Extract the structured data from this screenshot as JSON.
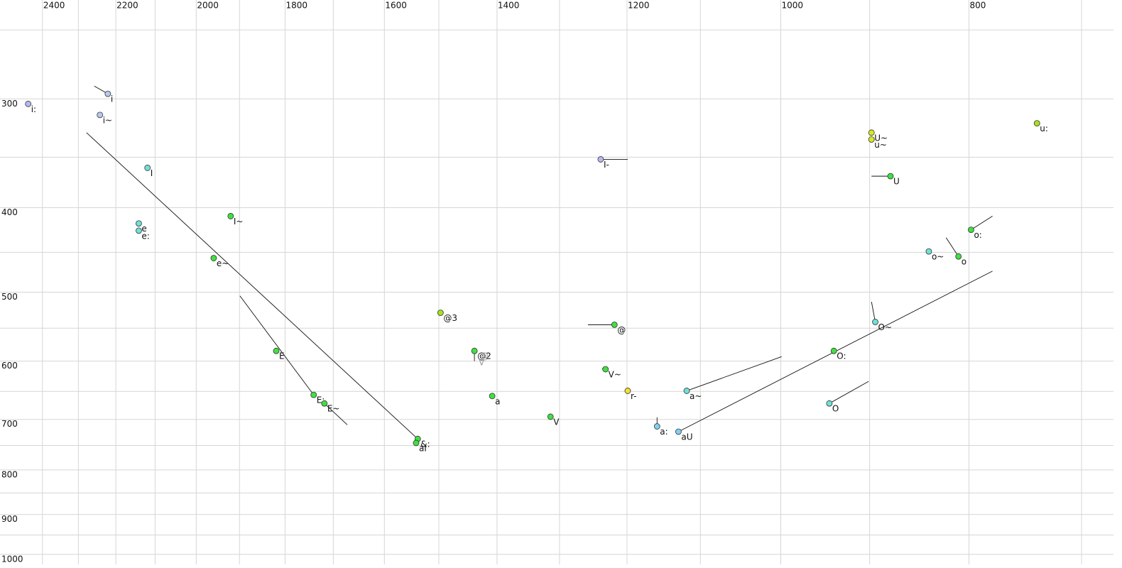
{
  "chart_data": {
    "type": "scatter",
    "log_x": true,
    "log_y": true,
    "grid": true,
    "xlim": [
      2524,
      674
    ],
    "ylim": [
      231,
      1027
    ],
    "xticks": [
      2400,
      2200,
      2000,
      1800,
      1600,
      1400,
      1200,
      1000,
      800
    ],
    "xgrid": [
      2400,
      2300,
      2200,
      2100,
      2000,
      1900,
      1800,
      1700,
      1600,
      1500,
      1400,
      1300,
      1200,
      1100,
      1000,
      900,
      800,
      700
    ],
    "yticks": [
      300,
      400,
      500,
      600,
      700,
      800,
      900,
      1000
    ],
    "ygrid": [
      250,
      300,
      350,
      400,
      450,
      500,
      550,
      600,
      650,
      700,
      750,
      800,
      850,
      900,
      950,
      1000
    ],
    "points": [
      {
        "name": "i:",
        "x": 2441,
        "y": 304,
        "color": "#b8b8f0"
      },
      {
        "name": "i",
        "x": 2221,
        "y": 296,
        "color": "#b8c8f0",
        "to": [
          2257,
          290
        ]
      },
      {
        "name": "i~",
        "x": 2242,
        "y": 313,
        "color": "#b8c8f0"
      },
      {
        "name": "I",
        "x": 2119,
        "y": 360,
        "color": "#70e0d8"
      },
      {
        "name": "e",
        "x": 2141,
        "y": 417,
        "color": "#70e0d8"
      },
      {
        "name": "e:",
        "x": 2141,
        "y": 425,
        "color": "#70e0d8"
      },
      {
        "name": "I~",
        "x": 1920,
        "y": 409,
        "color": "#40e040"
      },
      {
        "name": "e~",
        "x": 1959,
        "y": 457,
        "color": "#40e040"
      },
      {
        "name": "E",
        "x": 1819,
        "y": 584,
        "color": "#40e040"
      },
      {
        "name": "E:",
        "x": 1740,
        "y": 656,
        "color": "#40e040",
        "to": [
          1899,
          505
        ]
      },
      {
        "name": "E~",
        "x": 1718,
        "y": 671,
        "color": "#40e040",
        "to": [
          1672,
          710
        ]
      },
      {
        "name": "&:",
        "x": 1538,
        "y": 737,
        "color": "#40e040",
        "to": [
          2278,
          328
        ]
      },
      {
        "name": "aI",
        "x": 1541,
        "y": 745,
        "color": "#40e040"
      },
      {
        "name": "@3",
        "x": 1497,
        "y": 528,
        "color": "#a8e020"
      },
      {
        "name": "@2",
        "x": 1438,
        "y": 584,
        "color": "#40e040",
        "to": [
          1438,
          600
        ],
        "extra_labels": [
          "@",
          "V"
        ]
      },
      {
        "name": "a",
        "x": 1408,
        "y": 658,
        "color": "#40e040"
      },
      {
        "name": "V",
        "x": 1314,
        "y": 695,
        "color": "#40e040"
      },
      {
        "name": "I-",
        "x": 1238,
        "y": 352,
        "color": "#b8b8f0",
        "to": [
          1199,
          352
        ]
      },
      {
        "name": "@",
        "x": 1218,
        "y": 545,
        "color": "#40e040",
        "to": [
          1257,
          545
        ]
      },
      {
        "name": "V~",
        "x": 1231,
        "y": 613,
        "color": "#40e040",
        "to": [
          1236,
          612
        ]
      },
      {
        "name": "r-",
        "x": 1199,
        "y": 649,
        "color": "#f0e030"
      },
      {
        "name": "a:",
        "x": 1158,
        "y": 713,
        "color": "#80d0f0",
        "to": [
          1158,
          696
        ]
      },
      {
        "name": "a~",
        "x": 1118,
        "y": 649,
        "color": "#70e0d8",
        "to": [
          999,
          593
        ]
      },
      {
        "name": "aU",
        "x": 1129,
        "y": 723,
        "color": "#80d0f0",
        "to": [
          778,
          473
        ]
      },
      {
        "name": "O",
        "x": 944,
        "y": 671,
        "color": "#70e0d8",
        "to": [
          901,
          633
        ]
      },
      {
        "name": "O:",
        "x": 939,
        "y": 584,
        "color": "#40e040"
      },
      {
        "name": "O~",
        "x": 894,
        "y": 541,
        "color": "#70e0d8",
        "to": [
          898,
          513
        ]
      },
      {
        "name": "U~",
        "x": 898,
        "y": 328,
        "color": "#d8e820"
      },
      {
        "name": "u~",
        "x": 898,
        "y": 334,
        "color": "#d8e820"
      },
      {
        "name": "U",
        "x": 878,
        "y": 368,
        "color": "#40e040",
        "to": [
          898,
          368
        ]
      },
      {
        "name": "o~",
        "x": 839,
        "y": 449,
        "color": "#70e0d8"
      },
      {
        "name": "o",
        "x": 810,
        "y": 455,
        "color": "#40e040",
        "to": [
          822,
          433
        ]
      },
      {
        "name": "o:",
        "x": 798,
        "y": 424,
        "color": "#40e040",
        "to": [
          778,
          409
        ]
      },
      {
        "name": "u:",
        "x": 738,
        "y": 320,
        "color": "#a8e020"
      }
    ]
  }
}
